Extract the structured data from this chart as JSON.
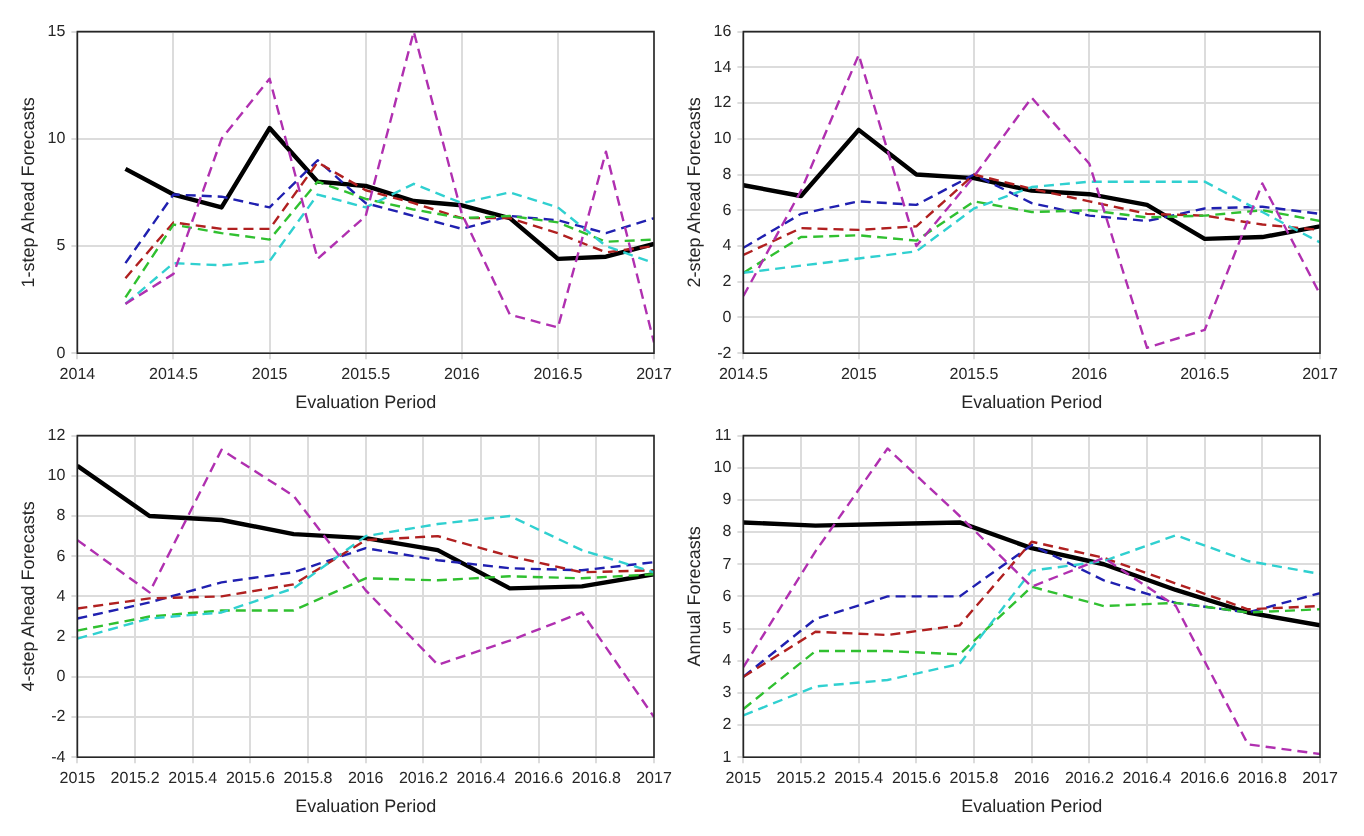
{
  "chart_data": [
    {
      "type": "line",
      "xlabel": "Evaluation Period",
      "ylabel": "1-step Ahead Forecasts",
      "x": [
        2014.25,
        2014.5,
        2014.75,
        2015,
        2015.25,
        2015.5,
        2015.75,
        2016,
        2016.25,
        2016.5,
        2016.75,
        2017
      ],
      "xlim": [
        2014,
        2017
      ],
      "xticks": [
        2014,
        2014.5,
        2015,
        2015.5,
        2016,
        2016.5,
        2017
      ],
      "ylim": [
        0,
        15
      ],
      "yticks": [
        0,
        5,
        10,
        15
      ],
      "grid": true,
      "series": [
        {
          "color": "#000000",
          "line_style": "solid",
          "values": [
            8.6,
            7.4,
            6.8,
            10.5,
            8.0,
            7.8,
            7.1,
            6.9,
            6.3,
            4.4,
            4.5,
            5.1
          ]
        },
        {
          "color": "#2020b0",
          "line_style": "dashed",
          "values": [
            4.2,
            7.4,
            7.3,
            6.8,
            9.0,
            7.0,
            6.4,
            5.8,
            6.4,
            6.2,
            5.6,
            6.3
          ]
        },
        {
          "color": "#b02020",
          "line_style": "dashed",
          "values": [
            3.5,
            6.1,
            5.8,
            5.8,
            8.9,
            7.6,
            7.0,
            6.3,
            6.3,
            5.6,
            4.7,
            5.0
          ]
        },
        {
          "color": "#30c030",
          "line_style": "dashed",
          "values": [
            2.6,
            6.0,
            5.6,
            5.3,
            8.0,
            7.2,
            6.7,
            6.3,
            6.4,
            6.1,
            5.2,
            5.3
          ]
        },
        {
          "color": "#30d0d0",
          "line_style": "dashed",
          "values": [
            2.3,
            4.2,
            4.1,
            4.3,
            7.4,
            6.8,
            7.9,
            7.0,
            7.5,
            6.8,
            5.0,
            4.2
          ]
        },
        {
          "color": "#b030b0",
          "line_style": "dashed",
          "values": [
            2.3,
            3.7,
            10.0,
            12.8,
            4.4,
            6.4,
            15.0,
            6.5,
            1.8,
            1.2,
            9.4,
            0.5
          ]
        }
      ]
    },
    {
      "type": "line",
      "xlabel": "Evaluation Period",
      "ylabel": "2-step Ahead Forecasts",
      "x": [
        2014.5,
        2014.75,
        2015,
        2015.25,
        2015.5,
        2015.75,
        2016,
        2016.25,
        2016.5,
        2016.75,
        2017
      ],
      "xlim": [
        2014.5,
        2017
      ],
      "xticks": [
        2014.5,
        2015,
        2015.5,
        2016,
        2016.5,
        2017
      ],
      "ylim": [
        -2,
        16
      ],
      "yticks": [
        -2,
        0,
        2,
        4,
        6,
        8,
        10,
        12,
        14,
        16
      ],
      "grid": true,
      "series": [
        {
          "color": "#000000",
          "line_style": "solid",
          "values": [
            7.4,
            6.8,
            10.5,
            8.0,
            7.8,
            7.1,
            6.9,
            6.3,
            4.4,
            4.5,
            5.1
          ]
        },
        {
          "color": "#2020b0",
          "line_style": "dashed",
          "values": [
            3.9,
            5.8,
            6.5,
            6.3,
            8.0,
            6.4,
            5.7,
            5.4,
            6.1,
            6.2,
            5.8
          ]
        },
        {
          "color": "#b02020",
          "line_style": "dashed",
          "values": [
            3.5,
            5.0,
            4.9,
            5.1,
            8.0,
            7.2,
            6.5,
            5.8,
            5.7,
            5.2,
            4.9
          ]
        },
        {
          "color": "#30c030",
          "line_style": "dashed",
          "values": [
            2.5,
            4.5,
            4.6,
            4.3,
            6.5,
            5.9,
            6.0,
            5.6,
            5.7,
            6.0,
            5.4
          ]
        },
        {
          "color": "#30d0d0",
          "line_style": "dashed",
          "values": [
            2.5,
            2.9,
            3.3,
            3.7,
            6.1,
            7.3,
            7.6,
            7.6,
            7.6,
            5.9,
            4.2
          ]
        },
        {
          "color": "#b030b0",
          "line_style": "dashed",
          "values": [
            1.2,
            7.1,
            14.7,
            4.0,
            7.9,
            12.3,
            8.6,
            -1.7,
            -0.7,
            7.5,
            1.3
          ]
        }
      ]
    },
    {
      "type": "line",
      "xlabel": "Evaluation Period",
      "ylabel": "4-step Ahead Forecasts",
      "x": [
        2015,
        2015.25,
        2015.5,
        2015.75,
        2016,
        2016.25,
        2016.5,
        2016.75,
        2017
      ],
      "xlim": [
        2015,
        2017
      ],
      "xticks": [
        2015,
        2015.2,
        2015.4,
        2015.6,
        2015.8,
        2016,
        2016.2,
        2016.4,
        2016.6,
        2016.8,
        2017
      ],
      "ylim": [
        -4,
        12
      ],
      "yticks": [
        -4,
        -2,
        0,
        2,
        4,
        6,
        8,
        10,
        12
      ],
      "grid": true,
      "series": [
        {
          "color": "#000000",
          "line_style": "solid",
          "values": [
            10.5,
            8.0,
            7.8,
            7.1,
            6.9,
            6.3,
            4.4,
            4.5,
            5.1
          ]
        },
        {
          "color": "#2020b0",
          "line_style": "dashed",
          "values": [
            2.9,
            3.7,
            4.7,
            5.2,
            6.4,
            5.8,
            5.4,
            5.3,
            5.7
          ]
        },
        {
          "color": "#b02020",
          "line_style": "dashed",
          "values": [
            3.4,
            3.9,
            4.0,
            4.6,
            6.8,
            7.0,
            6.0,
            5.2,
            5.3
          ]
        },
        {
          "color": "#30c030",
          "line_style": "dashed",
          "values": [
            2.3,
            3.0,
            3.3,
            3.3,
            4.9,
            4.8,
            5.0,
            4.9,
            5.1
          ]
        },
        {
          "color": "#30d0d0",
          "line_style": "dashed",
          "values": [
            1.9,
            2.9,
            3.2,
            4.4,
            7.0,
            7.6,
            8.0,
            6.3,
            5.2
          ]
        },
        {
          "color": "#b030b0",
          "line_style": "dashed",
          "values": [
            6.8,
            4.2,
            11.3,
            9.0,
            4.3,
            0.6,
            1.8,
            3.2,
            -2.0
          ]
        }
      ]
    },
    {
      "type": "line",
      "xlabel": "Evaluation Period",
      "ylabel": "Annual Forecasts",
      "x": [
        2015,
        2015.25,
        2015.5,
        2015.75,
        2016,
        2016.25,
        2016.5,
        2016.75,
        2017
      ],
      "xlim": [
        2015,
        2017
      ],
      "xticks": [
        2015,
        2015.2,
        2015.4,
        2015.6,
        2015.8,
        2016,
        2016.2,
        2016.4,
        2016.6,
        2016.8,
        2017
      ],
      "ylim": [
        1,
        11
      ],
      "yticks": [
        1,
        2,
        3,
        4,
        5,
        6,
        7,
        8,
        9,
        10,
        11
      ],
      "grid": true,
      "series": [
        {
          "color": "#000000",
          "line_style": "solid",
          "values": [
            8.3,
            8.2,
            8.25,
            8.3,
            7.5,
            7.0,
            6.2,
            5.5,
            5.1
          ]
        },
        {
          "color": "#2020b0",
          "line_style": "dashed",
          "values": [
            3.5,
            5.3,
            6.0,
            6.0,
            7.6,
            6.5,
            5.8,
            5.5,
            6.1
          ]
        },
        {
          "color": "#b02020",
          "line_style": "dashed",
          "values": [
            3.5,
            4.9,
            4.8,
            5.1,
            7.7,
            7.2,
            6.4,
            5.6,
            5.7
          ]
        },
        {
          "color": "#30c030",
          "line_style": "dashed",
          "values": [
            2.5,
            4.3,
            4.3,
            4.2,
            6.3,
            5.7,
            5.8,
            5.5,
            5.6
          ]
        },
        {
          "color": "#30d0d0",
          "line_style": "dashed",
          "values": [
            2.3,
            3.2,
            3.4,
            3.9,
            6.8,
            7.1,
            7.9,
            7.1,
            6.7
          ]
        },
        {
          "color": "#b030b0",
          "line_style": "dashed",
          "values": [
            3.8,
            7.4,
            10.6,
            8.5,
            6.3,
            7.2,
            5.7,
            1.4,
            1.1
          ]
        }
      ]
    }
  ]
}
